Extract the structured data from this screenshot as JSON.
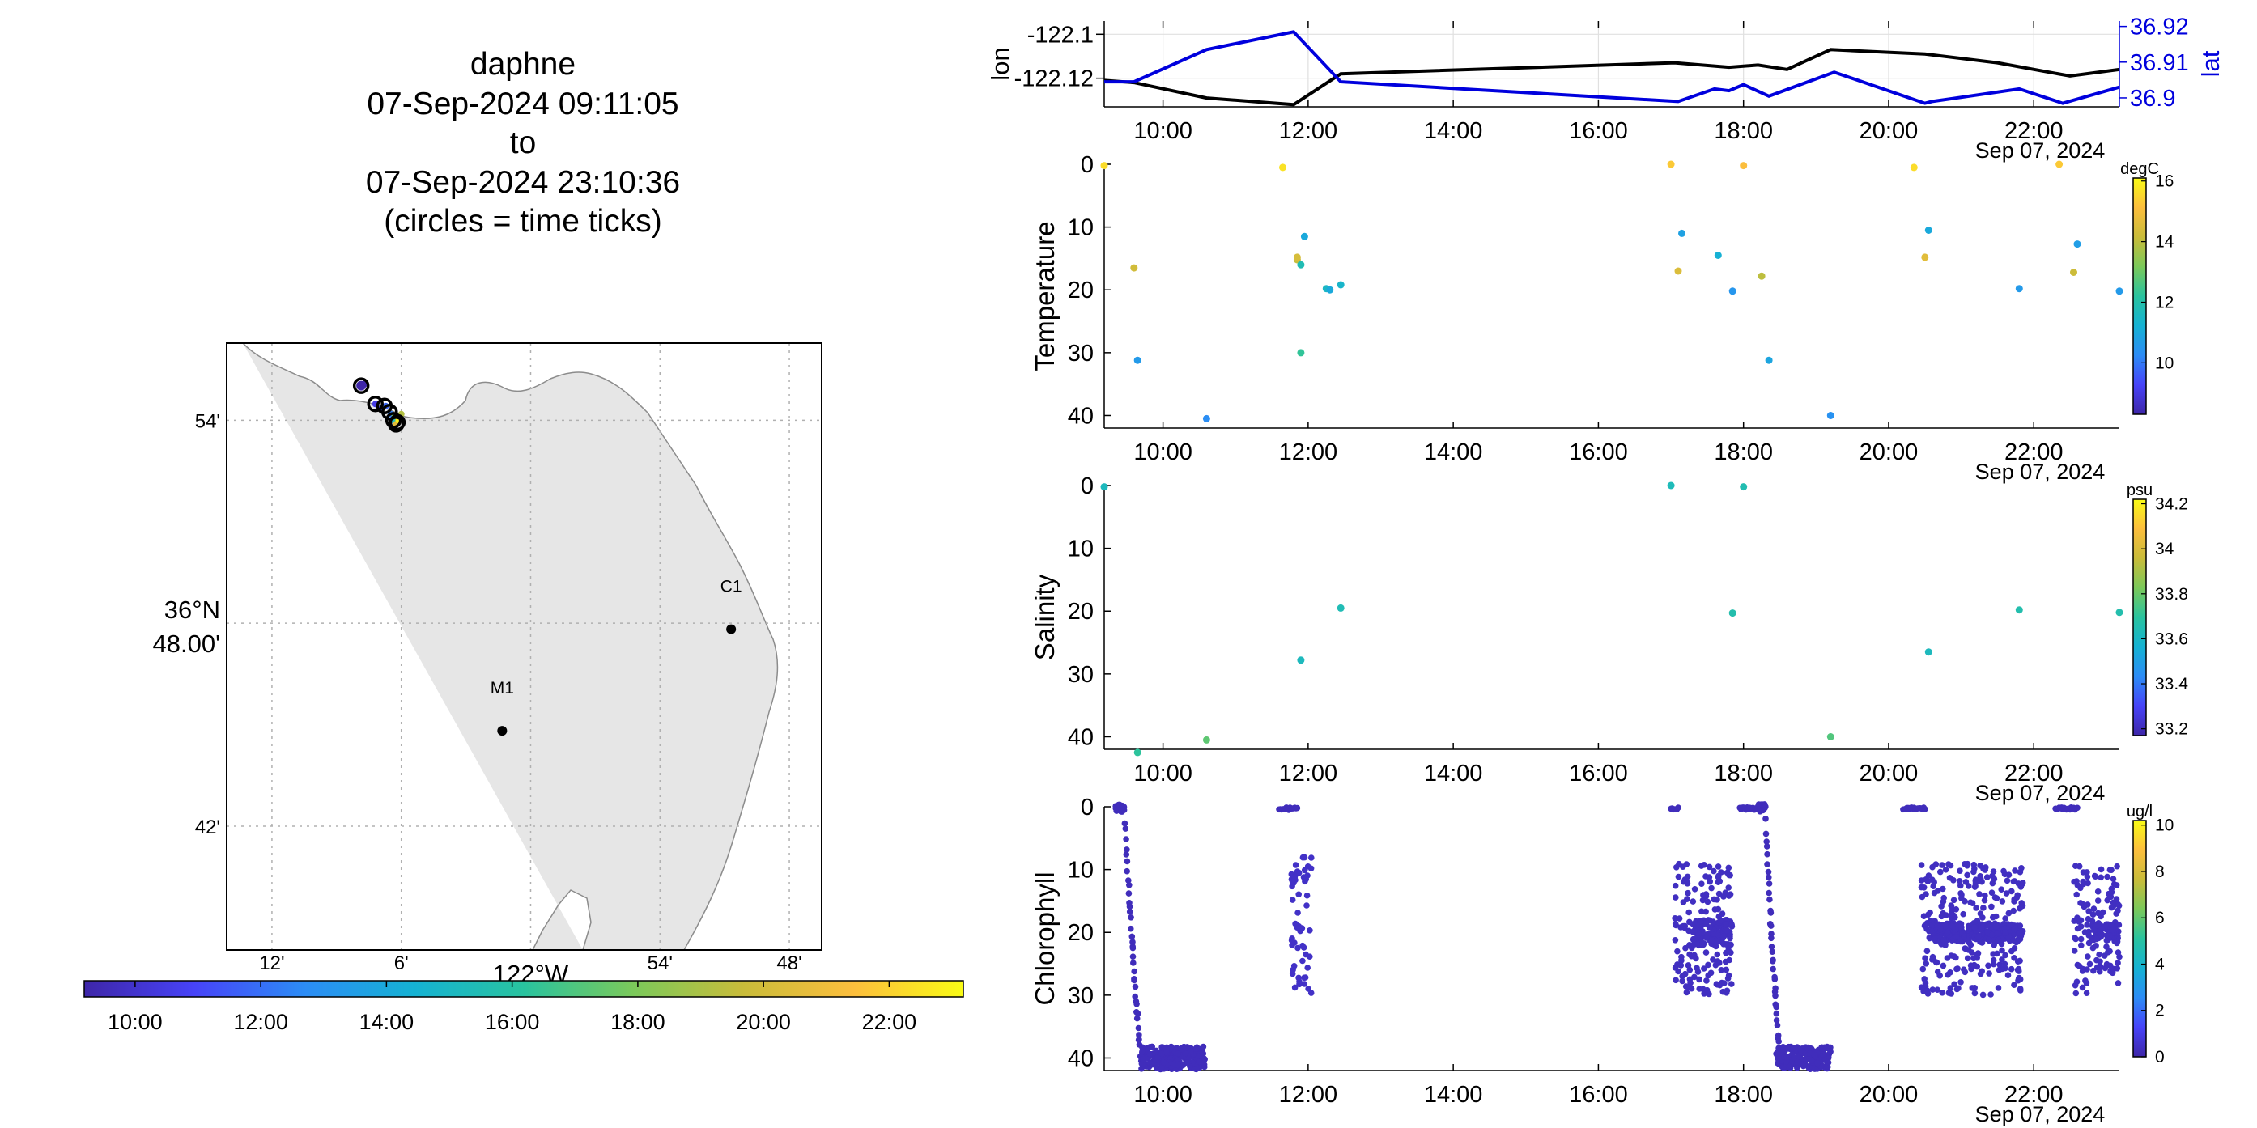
{
  "title": {
    "line1": "daphne",
    "line2": "07-Sep-2024 09:11:05",
    "line3": "to",
    "line4": "07-Sep-2024 23:10:36",
    "line5": "(circles = time ticks)"
  },
  "colors": {
    "lon_line": "#000000",
    "lat_line": "#0000dd",
    "land": "#e6e6e6",
    "coast": "#8c8c8c",
    "grid": "#b0b0b0",
    "colormap": [
      "#3e26a8",
      "#4743f8",
      "#2c8cf6",
      "#15b2d3",
      "#29c39f",
      "#7bc95a",
      "#c9bc3a",
      "#fcbe3d",
      "#f9fb15"
    ]
  },
  "map": {
    "lat_labels": [
      "54'",
      "36°N\n48.00'",
      "42'"
    ],
    "lat_values": [
      36.9,
      36.8,
      36.7
    ],
    "lon_labels": [
      "12'",
      "6'",
      "122°W",
      "54'",
      "48'"
    ],
    "lon_values": [
      -122.2,
      -122.1,
      -122.0,
      -121.9,
      -121.8
    ],
    "stations": [
      {
        "name": "C1",
        "lon": -121.845,
        "lat": 36.797
      },
      {
        "name": "M1",
        "lon": -122.022,
        "lat": 36.747
      }
    ],
    "track": [
      {
        "lon": -122.131,
        "lat": 36.917,
        "t": 9.19
      },
      {
        "lon": -122.128,
        "lat": 36.918,
        "t": 9.5
      },
      {
        "lon": -122.12,
        "lat": 36.908,
        "t": 10.5
      },
      {
        "lon": -122.115,
        "lat": 36.906,
        "t": 11.2
      },
      {
        "lon": -122.112,
        "lat": 36.907,
        "t": 11.8
      },
      {
        "lon": -122.108,
        "lat": 36.903,
        "t": 12.4
      },
      {
        "lon": -122.106,
        "lat": 36.9,
        "t": 15.0
      },
      {
        "lon": -122.103,
        "lat": 36.899,
        "t": 17.1
      },
      {
        "lon": -122.105,
        "lat": 36.902,
        "t": 18.0
      },
      {
        "lon": -122.1,
        "lat": 36.903,
        "t": 19.2
      },
      {
        "lon": -122.104,
        "lat": 36.898,
        "t": 20.5
      },
      {
        "lon": -122.102,
        "lat": 36.9,
        "t": 22.9
      }
    ],
    "time_ticks": [
      {
        "lon": -122.131,
        "lat": 36.917
      },
      {
        "lon": -122.12,
        "lat": 36.908
      },
      {
        "lon": -122.113,
        "lat": 36.907
      },
      {
        "lon": -122.109,
        "lat": 36.904
      },
      {
        "lon": -122.106,
        "lat": 36.9
      },
      {
        "lon": -122.103,
        "lat": 36.899
      },
      {
        "lon": -122.104,
        "lat": 36.898
      }
    ],
    "colorbar_ticks": [
      "10:00",
      "12:00",
      "14:00",
      "16:00",
      "18:00",
      "20:00",
      "22:00"
    ],
    "colorbar_range": [
      9.19,
      23.18
    ]
  },
  "chart_data": [
    {
      "type": "line",
      "title": "",
      "xlabel": "Sep 07, 2024",
      "ylabel": "lon",
      "y2label": "lat",
      "x_ticks": [
        "10:00",
        "12:00",
        "14:00",
        "16:00",
        "18:00",
        "20:00",
        "22:00"
      ],
      "xlim": [
        9.19,
        23.18
      ],
      "ylim": [
        -122.133,
        -122.094
      ],
      "y_ticks": [
        -122.1,
        -122.12
      ],
      "y_tick_labels": [
        "-122.1",
        "-122.12"
      ],
      "y2lim": [
        36.8975,
        36.9215
      ],
      "y2_ticks": [
        36.92,
        36.91,
        36.9
      ],
      "y2_tick_labels": [
        "36.92",
        "36.91",
        "36.9"
      ],
      "series": [
        {
          "name": "lon",
          "axis": "left",
          "x": [
            9.19,
            9.6,
            10.6,
            11.8,
            12.45,
            17.05,
            17.8,
            18.2,
            18.6,
            19.2,
            20.5,
            21.5,
            22.5,
            23.18
          ],
          "y": [
            -122.121,
            -122.122,
            -122.129,
            -122.132,
            -122.118,
            -122.113,
            -122.115,
            -122.114,
            -122.116,
            -122.107,
            -122.109,
            -122.113,
            -122.119,
            -122.116
          ]
        },
        {
          "name": "lat",
          "axis": "right",
          "x": [
            9.19,
            9.6,
            10.6,
            11.8,
            12.45,
            17.1,
            17.6,
            17.8,
            18.0,
            18.35,
            19.25,
            20.5,
            20.6,
            21.8,
            22.4,
            23.18
          ],
          "y": [
            36.9045,
            36.9045,
            36.9135,
            36.9185,
            36.9045,
            36.899,
            36.9025,
            36.902,
            36.9037,
            36.9005,
            36.9072,
            36.8985,
            36.899,
            36.9025,
            36.8985,
            36.903
          ]
        }
      ]
    },
    {
      "type": "scatter",
      "ylabel": "Temperature",
      "xlabel": "Sep 07, 2024",
      "colorbar_label": "degC",
      "clim": [
        8.3,
        16.1
      ],
      "colorbar_ticks": [
        "10",
        "12",
        "14",
        "16"
      ],
      "colorbar_tick_values": [
        10,
        12,
        14,
        16
      ],
      "x_ticks": [
        "10:00",
        "12:00",
        "14:00",
        "16:00",
        "18:00",
        "20:00",
        "22:00"
      ],
      "xlim": [
        9.19,
        23.18
      ],
      "ylim": [
        42,
        0
      ],
      "y_ticks": [
        0,
        10,
        20,
        30,
        40
      ],
      "points": [
        {
          "t": 9.19,
          "d": 0.2,
          "v": 15.6
        },
        {
          "t": 9.6,
          "d": 16.5,
          "v": 14.3
        },
        {
          "t": 9.65,
          "d": 31.2,
          "v": 10.6
        },
        {
          "t": 10.6,
          "d": 40.5,
          "v": 10.3
        },
        {
          "t": 11.65,
          "d": 0.5,
          "v": 15.7
        },
        {
          "t": 11.85,
          "d": 15.2,
          "v": 14.1
        },
        {
          "t": 11.85,
          "d": 14.8,
          "v": 14.4
        },
        {
          "t": 11.9,
          "d": 16.0,
          "v": 11.8
        },
        {
          "t": 11.95,
          "d": 11.5,
          "v": 11.0
        },
        {
          "t": 11.9,
          "d": 30.0,
          "v": 12.3
        },
        {
          "t": 12.25,
          "d": 19.8,
          "v": 11.5
        },
        {
          "t": 12.3,
          "d": 20.0,
          "v": 11.0
        },
        {
          "t": 12.45,
          "d": 19.2,
          "v": 11.4
        },
        {
          "t": 17.0,
          "d": 0.0,
          "v": 15.3
        },
        {
          "t": 17.1,
          "d": 17.0,
          "v": 14.5
        },
        {
          "t": 17.15,
          "d": 11.0,
          "v": 10.8
        },
        {
          "t": 17.65,
          "d": 14.5,
          "v": 11.2
        },
        {
          "t": 17.85,
          "d": 20.2,
          "v": 10.5
        },
        {
          "t": 18.0,
          "d": 0.2,
          "v": 15.1
        },
        {
          "t": 18.25,
          "d": 17.8,
          "v": 14.0
        },
        {
          "t": 18.35,
          "d": 31.2,
          "v": 10.9
        },
        {
          "t": 19.2,
          "d": 40.0,
          "v": 10.4
        },
        {
          "t": 20.35,
          "d": 0.5,
          "v": 15.6
        },
        {
          "t": 20.5,
          "d": 14.8,
          "v": 14.6
        },
        {
          "t": 20.55,
          "d": 10.5,
          "v": 11.0
        },
        {
          "t": 21.8,
          "d": 19.8,
          "v": 10.6
        },
        {
          "t": 22.35,
          "d": 0.0,
          "v": 15.3
        },
        {
          "t": 22.55,
          "d": 17.2,
          "v": 14.2
        },
        {
          "t": 22.6,
          "d": 12.7,
          "v": 10.7
        },
        {
          "t": 23.18,
          "d": 20.2,
          "v": 10.6
        }
      ]
    },
    {
      "type": "scatter",
      "ylabel": "Salinity",
      "xlabel": "Sep 07, 2024",
      "colorbar_label": "psu",
      "clim": [
        33.17,
        34.22
      ],
      "colorbar_ticks": [
        "33.2",
        "33.4",
        "33.6",
        "33.8",
        "34",
        "34.2"
      ],
      "colorbar_tick_values": [
        33.2,
        33.4,
        33.6,
        33.8,
        34.0,
        34.2
      ],
      "x_ticks": [
        "10:00",
        "12:00",
        "14:00",
        "16:00",
        "18:00",
        "20:00",
        "22:00"
      ],
      "xlim": [
        9.19,
        23.18
      ],
      "ylim": [
        42,
        0
      ],
      "y_ticks": [
        0,
        10,
        20,
        30,
        40
      ],
      "points": [
        {
          "t": 9.19,
          "d": 0.2,
          "v": 33.62
        },
        {
          "t": 9.65,
          "d": 42.5,
          "v": 33.7
        },
        {
          "t": 10.6,
          "d": 40.5,
          "v": 33.78
        },
        {
          "t": 11.9,
          "d": 27.8,
          "v": 33.62
        },
        {
          "t": 12.45,
          "d": 19.5,
          "v": 33.64
        },
        {
          "t": 17.0,
          "d": 0.0,
          "v": 33.63
        },
        {
          "t": 17.85,
          "d": 20.3,
          "v": 33.66
        },
        {
          "t": 18.0,
          "d": 0.2,
          "v": 33.65
        },
        {
          "t": 19.2,
          "d": 40.0,
          "v": 33.76
        },
        {
          "t": 20.55,
          "d": 26.5,
          "v": 33.62
        },
        {
          "t": 21.8,
          "d": 19.8,
          "v": 33.66
        },
        {
          "t": 23.18,
          "d": 20.2,
          "v": 33.66
        }
      ]
    },
    {
      "type": "scatter",
      "ylabel": "Chlorophyll",
      "xlabel": "Sep 07, 2024",
      "colorbar_label": "ug/l",
      "clim": [
        0,
        10.2
      ],
      "colorbar_ticks": [
        "0",
        "2",
        "4",
        "6",
        "8",
        "10"
      ],
      "colorbar_tick_values": [
        0,
        2,
        4,
        6,
        8,
        10
      ],
      "x_ticks": [
        "10:00",
        "12:00",
        "14:00",
        "16:00",
        "18:00",
        "20:00",
        "22:00"
      ],
      "xlim": [
        9.19,
        23.18
      ],
      "ylim": [
        42,
        0
      ],
      "y_ticks": [
        0,
        10,
        20,
        30,
        40
      ],
      "profiles": [
        {
          "type": "descent",
          "t_start": 9.35,
          "t_end": 9.7,
          "surface_end": 9.55,
          "d_max": 41,
          "v": 0.3
        },
        {
          "type": "bottom",
          "t_start": 9.7,
          "t_end": 10.6,
          "d_center": 40,
          "d_spread": 1.8,
          "v": 0.3
        },
        {
          "type": "surface",
          "t_start": 11.6,
          "t_end": 11.85,
          "d_center": 0.3,
          "v": 0.3
        },
        {
          "type": "cloud",
          "t_start": 11.75,
          "t_end": 12.05,
          "d_min": 8,
          "d_max": 30,
          "v": 0.5
        },
        {
          "type": "surface",
          "t_start": 17.0,
          "t_end": 17.1,
          "d_center": 0.3,
          "v": 0.3
        },
        {
          "type": "cloud",
          "t_start": 17.05,
          "t_end": 17.85,
          "d_min": 9,
          "d_max": 30,
          "v": 0.4
        },
        {
          "type": "band",
          "t_start": 17.3,
          "t_end": 17.85,
          "d_center": 20,
          "d_spread": 2.0,
          "v": 0.4
        },
        {
          "type": "surface",
          "t_start": 17.95,
          "t_end": 18.25,
          "d_center": 0.3,
          "v": 0.3
        },
        {
          "type": "descent",
          "t_start": 18.2,
          "t_end": 18.5,
          "surface_end": 18.25,
          "d_max": 41,
          "v": 0.3
        },
        {
          "type": "bottom",
          "t_start": 18.45,
          "t_end": 19.2,
          "d_center": 40,
          "d_spread": 1.8,
          "v": 0.3
        },
        {
          "type": "surface",
          "t_start": 20.2,
          "t_end": 20.5,
          "d_center": 0.3,
          "v": 0.3
        },
        {
          "type": "cloud",
          "t_start": 20.45,
          "t_end": 21.85,
          "d_min": 9,
          "d_max": 30,
          "v": 0.4
        },
        {
          "type": "band",
          "t_start": 20.55,
          "t_end": 21.85,
          "d_center": 20,
          "d_spread": 1.5,
          "v": 0.4
        },
        {
          "type": "surface",
          "t_start": 22.3,
          "t_end": 22.6,
          "d_center": 0.3,
          "v": 0.3
        },
        {
          "type": "cloud",
          "t_start": 22.55,
          "t_end": 23.18,
          "d_min": 9,
          "d_max": 30,
          "v": 0.4
        },
        {
          "type": "band",
          "t_start": 22.8,
          "t_end": 23.18,
          "d_center": 20,
          "d_spread": 1.5,
          "v": 0.4
        }
      ]
    }
  ]
}
